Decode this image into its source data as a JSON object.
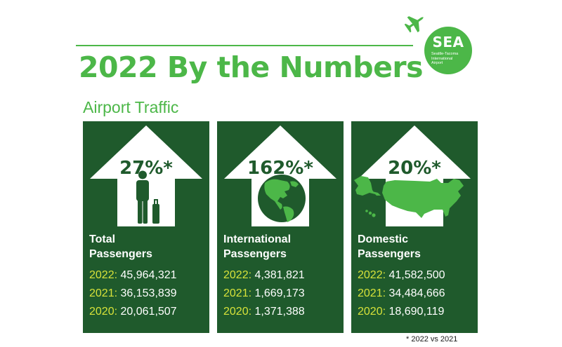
{
  "headline": "2022 By the Numbers",
  "section_title": "Airport Traffic",
  "logo": {
    "mark": "SEA",
    "name": "Seattle-Tacoma\nInternational\nAirport"
  },
  "colors": {
    "brand_green": "#4cb748",
    "dark_green": "#1f5a2c",
    "year_yellow": "#d7e23a"
  },
  "icons": [
    "airplane-icon",
    "traveler-icon",
    "globe-icon",
    "us-map-icon"
  ],
  "cards": [
    {
      "percent": "27%*",
      "label_line1": "Total",
      "label_line2": "Passengers",
      "stats": [
        {
          "year": "2022:",
          "value": "45,964,321"
        },
        {
          "year": "2021:",
          "value": "36,153,839"
        },
        {
          "year": "2020:",
          "value": "20,061,507"
        }
      ]
    },
    {
      "percent": "162%*",
      "label_line1": "International",
      "label_line2": "Passengers",
      "stats": [
        {
          "year": "2022:",
          "value": "4,381,821"
        },
        {
          "year": "2021:",
          "value": "1,669,173"
        },
        {
          "year": "2020:",
          "value": "1,371,388"
        }
      ]
    },
    {
      "percent": "20%*",
      "label_line1": "Domestic",
      "label_line2": "Passengers",
      "stats": [
        {
          "year": "2022:",
          "value": "41,582,500"
        },
        {
          "year": "2021:",
          "value": "34,484,666"
        },
        {
          "year": "2020:",
          "value": "18,690,119"
        }
      ]
    }
  ],
  "footnote": "* 2022 vs 2021"
}
